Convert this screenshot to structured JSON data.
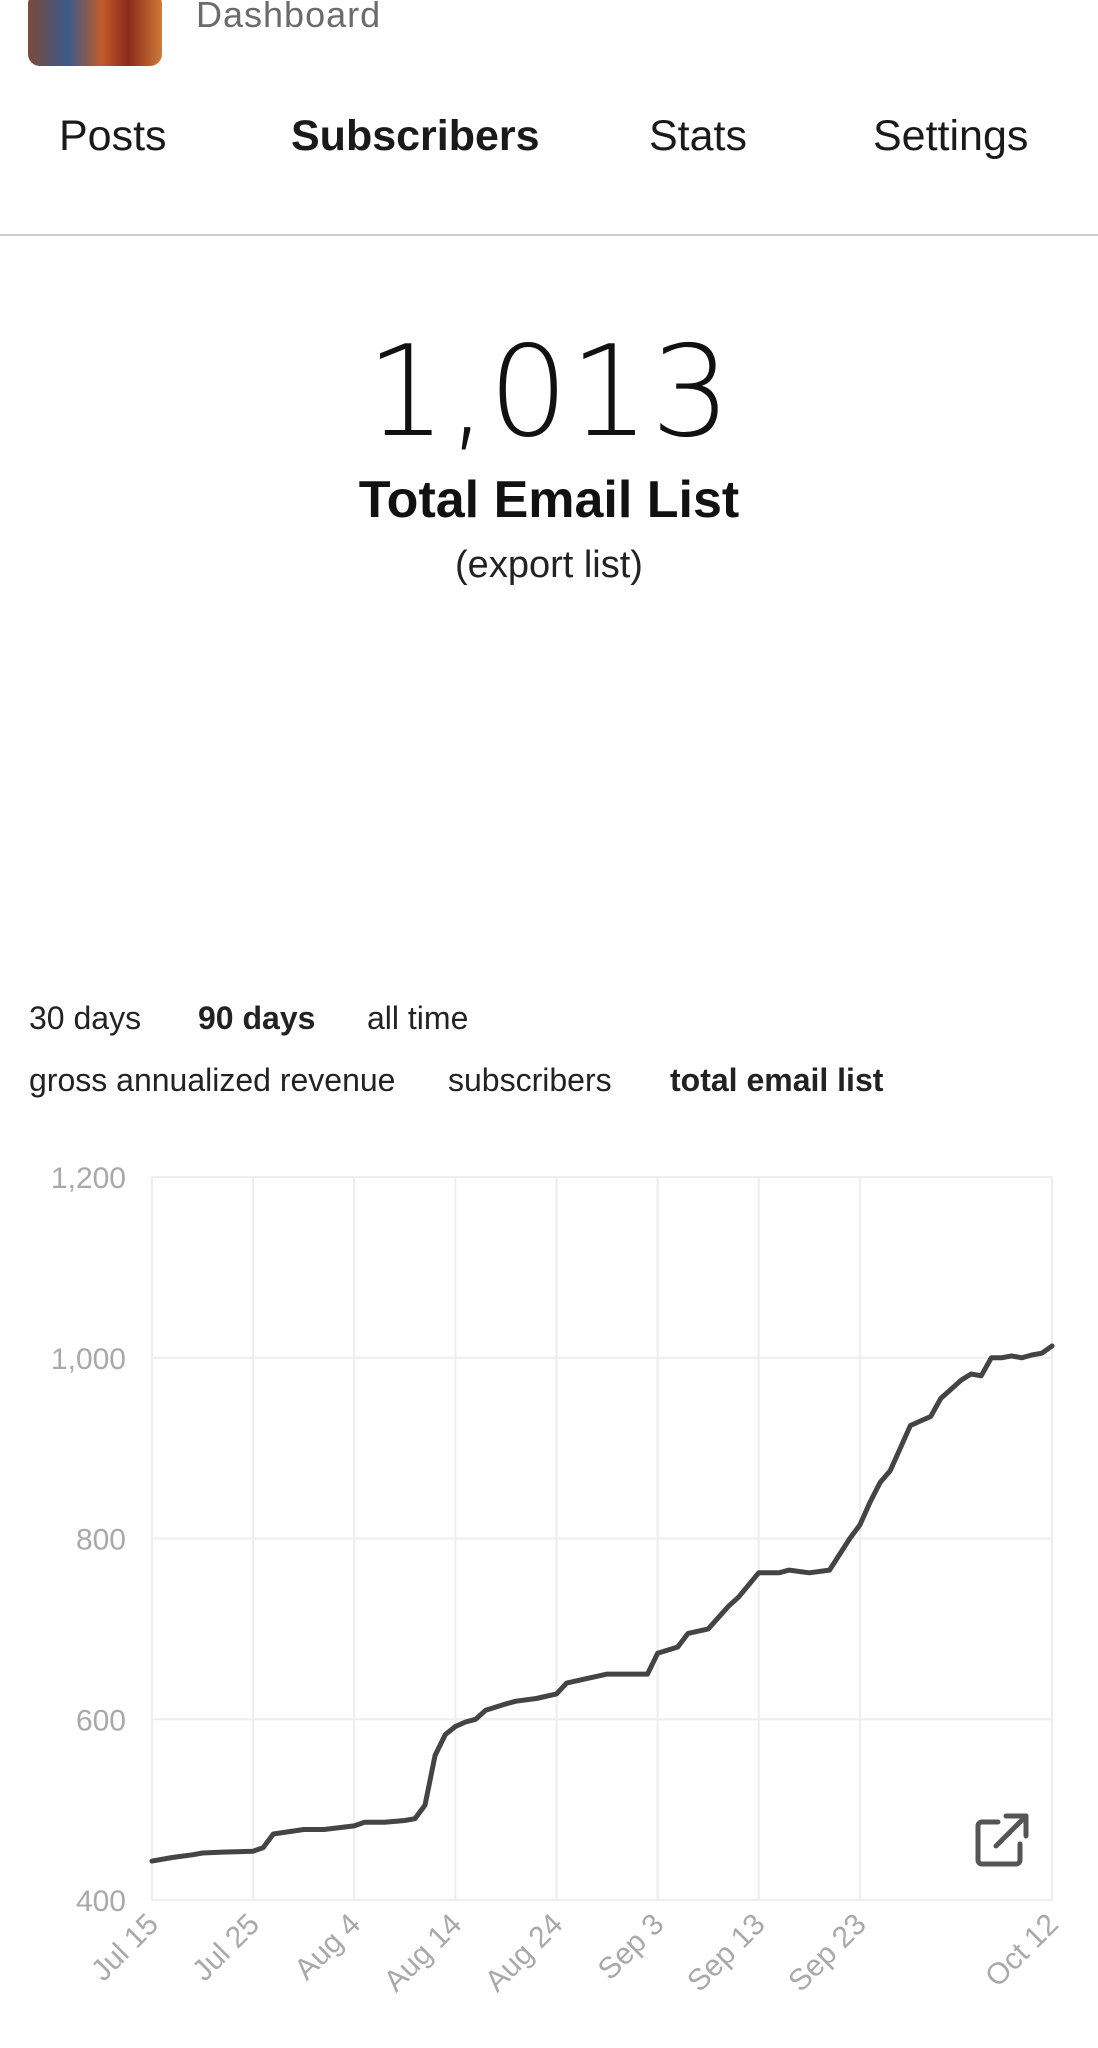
{
  "header": {
    "section_label": "Dashboard"
  },
  "tabs": [
    {
      "label": "Posts",
      "active": false
    },
    {
      "label": "Subscribers",
      "active": true
    },
    {
      "label": "Stats",
      "active": false
    },
    {
      "label": "Settings",
      "active": false
    }
  ],
  "summary": {
    "count": "1,013",
    "label": "Total Email List",
    "export_link": "(export list)"
  },
  "range_filters": [
    {
      "label": "30 days",
      "active": false
    },
    {
      "label": "90 days",
      "active": true
    },
    {
      "label": "all time",
      "active": false
    }
  ],
  "metric_filters": [
    {
      "label": "gross annualized revenue",
      "active": false
    },
    {
      "label": "subscribers",
      "active": false
    },
    {
      "label": "total email list",
      "active": true
    }
  ],
  "icons": {
    "chart_action": "external-link-icon"
  },
  "chart_data": {
    "type": "line",
    "title": "",
    "xlabel": "",
    "ylabel": "",
    "ylim": [
      400,
      1200
    ],
    "yticks": [
      400,
      600,
      800,
      1000,
      1200
    ],
    "ytick_labels": [
      "400",
      "600",
      "800",
      "1,000",
      "1,200"
    ],
    "xticks": [
      "Jul 15",
      "Jul 25",
      "Aug 4",
      "Aug 14",
      "Aug 24",
      "Sep 3",
      "Sep 13",
      "Sep 23",
      "Oct 12"
    ],
    "xtick_days": [
      0,
      10,
      20,
      30,
      40,
      50,
      60,
      70,
      89
    ],
    "grid": true,
    "line_color": "#444444",
    "series": [
      {
        "name": "",
        "x": [
          0,
          2,
          4,
          5,
          7,
          10,
          11,
          12,
          15,
          17,
          20,
          21,
          23,
          25,
          26,
          27,
          28,
          29,
          30,
          31,
          32,
          33,
          35,
          36,
          38,
          40,
          41,
          43,
          45,
          49,
          50,
          52,
          53,
          55,
          57,
          58,
          60,
          62,
          63,
          65,
          67,
          69,
          70,
          71,
          72,
          73,
          74,
          75,
          76,
          77,
          78,
          79,
          80,
          81,
          82,
          83,
          84,
          85,
          86,
          87,
          88,
          89
        ],
        "values": [
          443,
          447,
          450,
          452,
          453,
          454,
          458,
          473,
          478,
          478,
          482,
          486,
          486,
          488,
          490,
          505,
          560,
          583,
          592,
          597,
          600,
          610,
          617,
          620,
          623,
          628,
          640,
          645,
          650,
          650,
          673,
          680,
          695,
          700,
          725,
          735,
          762,
          762,
          765,
          762,
          765,
          800,
          815,
          840,
          862,
          875,
          900,
          925,
          930,
          935,
          955,
          965,
          975,
          982,
          980,
          1000,
          1000,
          1002,
          1000,
          1003,
          1005,
          1013
        ]
      }
    ]
  }
}
